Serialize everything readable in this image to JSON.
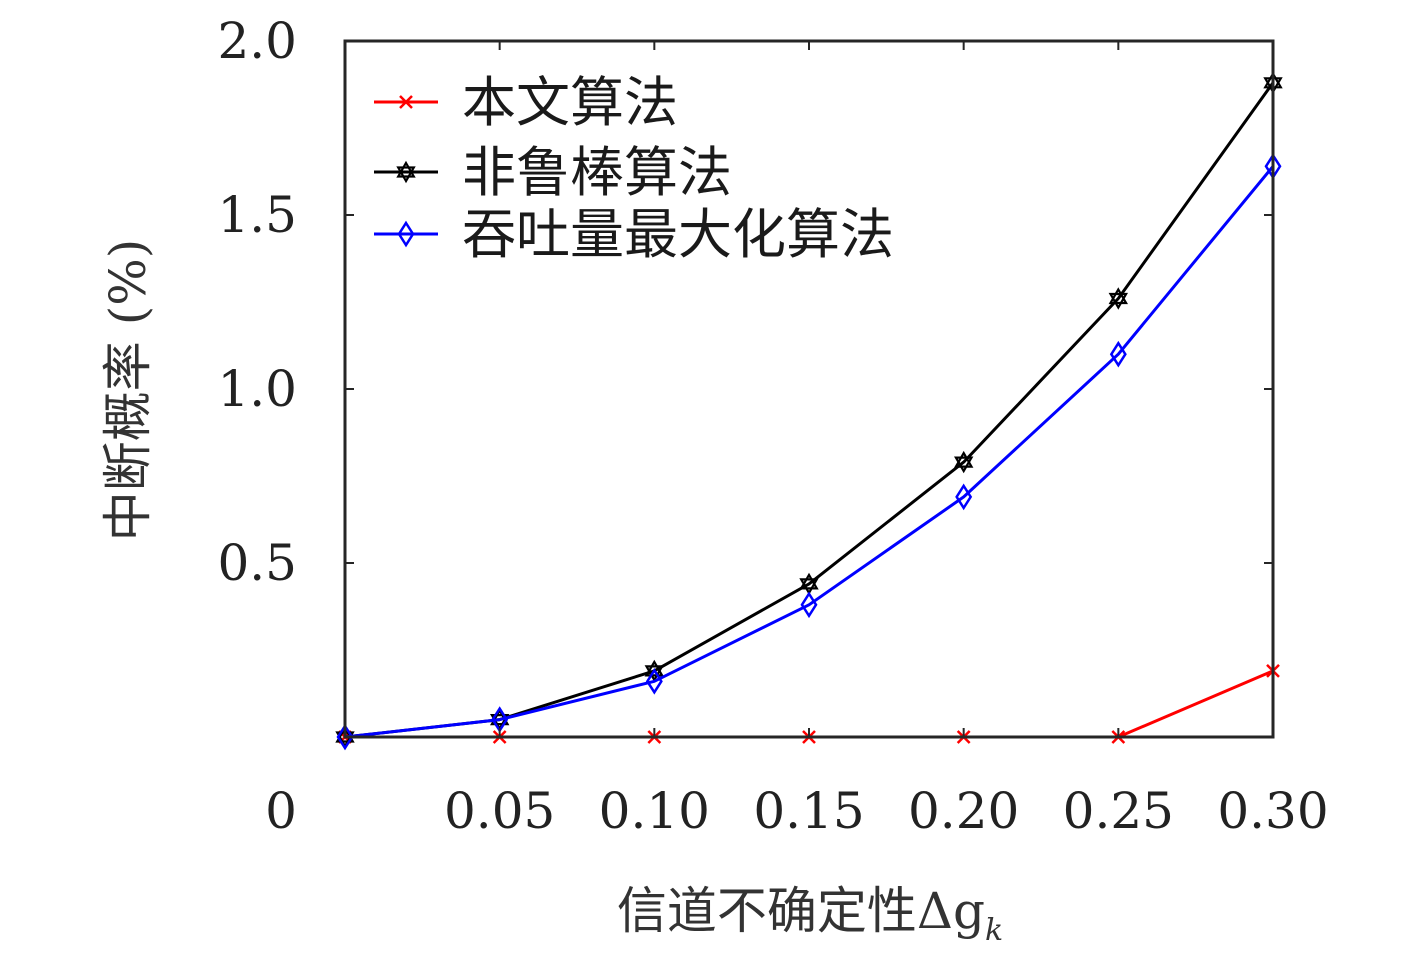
{
  "chart_data": {
    "type": "line",
    "title": "",
    "xlabel": "信道不确定性Δg",
    "xlabel_subscript": "k",
    "ylabel": "中断概率 (%)",
    "x": [
      0,
      0.05,
      0.1,
      0.15,
      0.2,
      0.25,
      0.3
    ],
    "x_tick_labels": [
      "0",
      "0.05",
      "0.10",
      "0.15",
      "0.20",
      "0.25",
      "0.30"
    ],
    "y_tick_values": [
      0.5,
      1.0,
      1.5,
      2.0
    ],
    "y_tick_labels": [
      "0.5",
      "1.0",
      "1.5",
      "2.0"
    ],
    "xlim": [
      0,
      0.3
    ],
    "ylim": [
      0,
      2.0
    ],
    "grid": false,
    "legend_position": "top-left",
    "series": [
      {
        "name": "本文算法",
        "color": "#ff0000",
        "marker": "x",
        "values": [
          0,
          0,
          0,
          0,
          0,
          0,
          0.19
        ]
      },
      {
        "name": "非鲁棒算法",
        "color": "#000000",
        "marker": "hexagram",
        "values": [
          0,
          0.05,
          0.19,
          0.44,
          0.79,
          1.26,
          1.88
        ]
      },
      {
        "name": "吞吐量最大化算法",
        "color": "#0000ff",
        "marker": "diamond",
        "values": [
          0,
          0.05,
          0.16,
          0.38,
          0.69,
          1.1,
          1.64
        ]
      }
    ]
  }
}
